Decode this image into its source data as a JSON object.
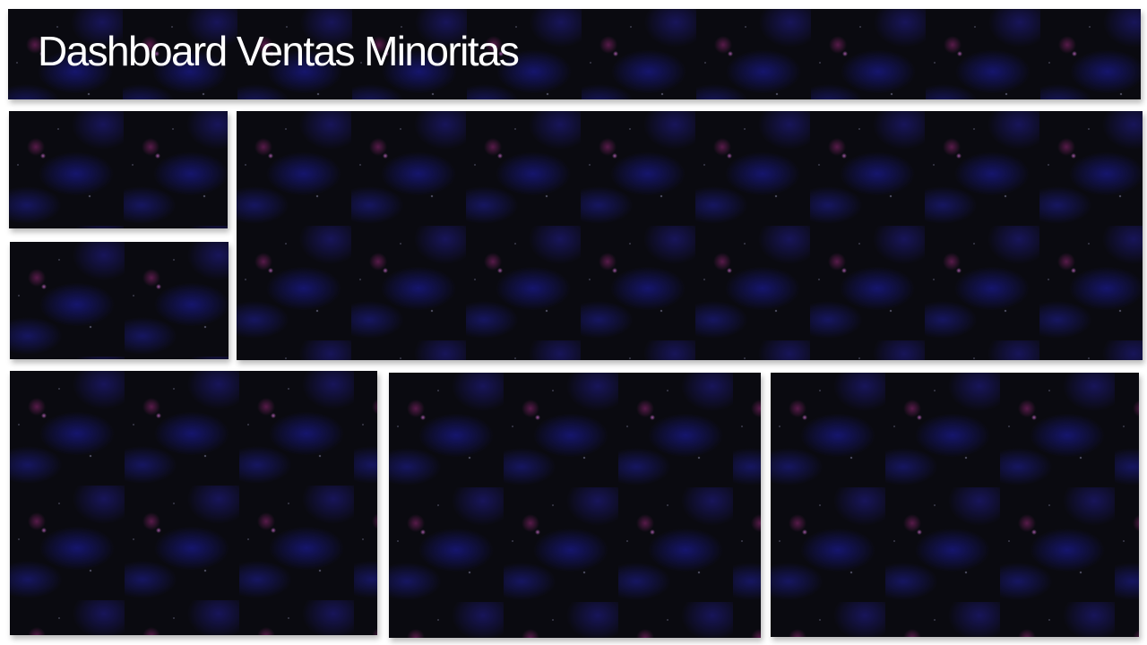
{
  "header": {
    "title": "Dashboard Ventas Minoritas"
  },
  "theme": {
    "panel_background": "#0a0a10",
    "title_color": "#ffffff",
    "page_background": "#ffffff"
  }
}
